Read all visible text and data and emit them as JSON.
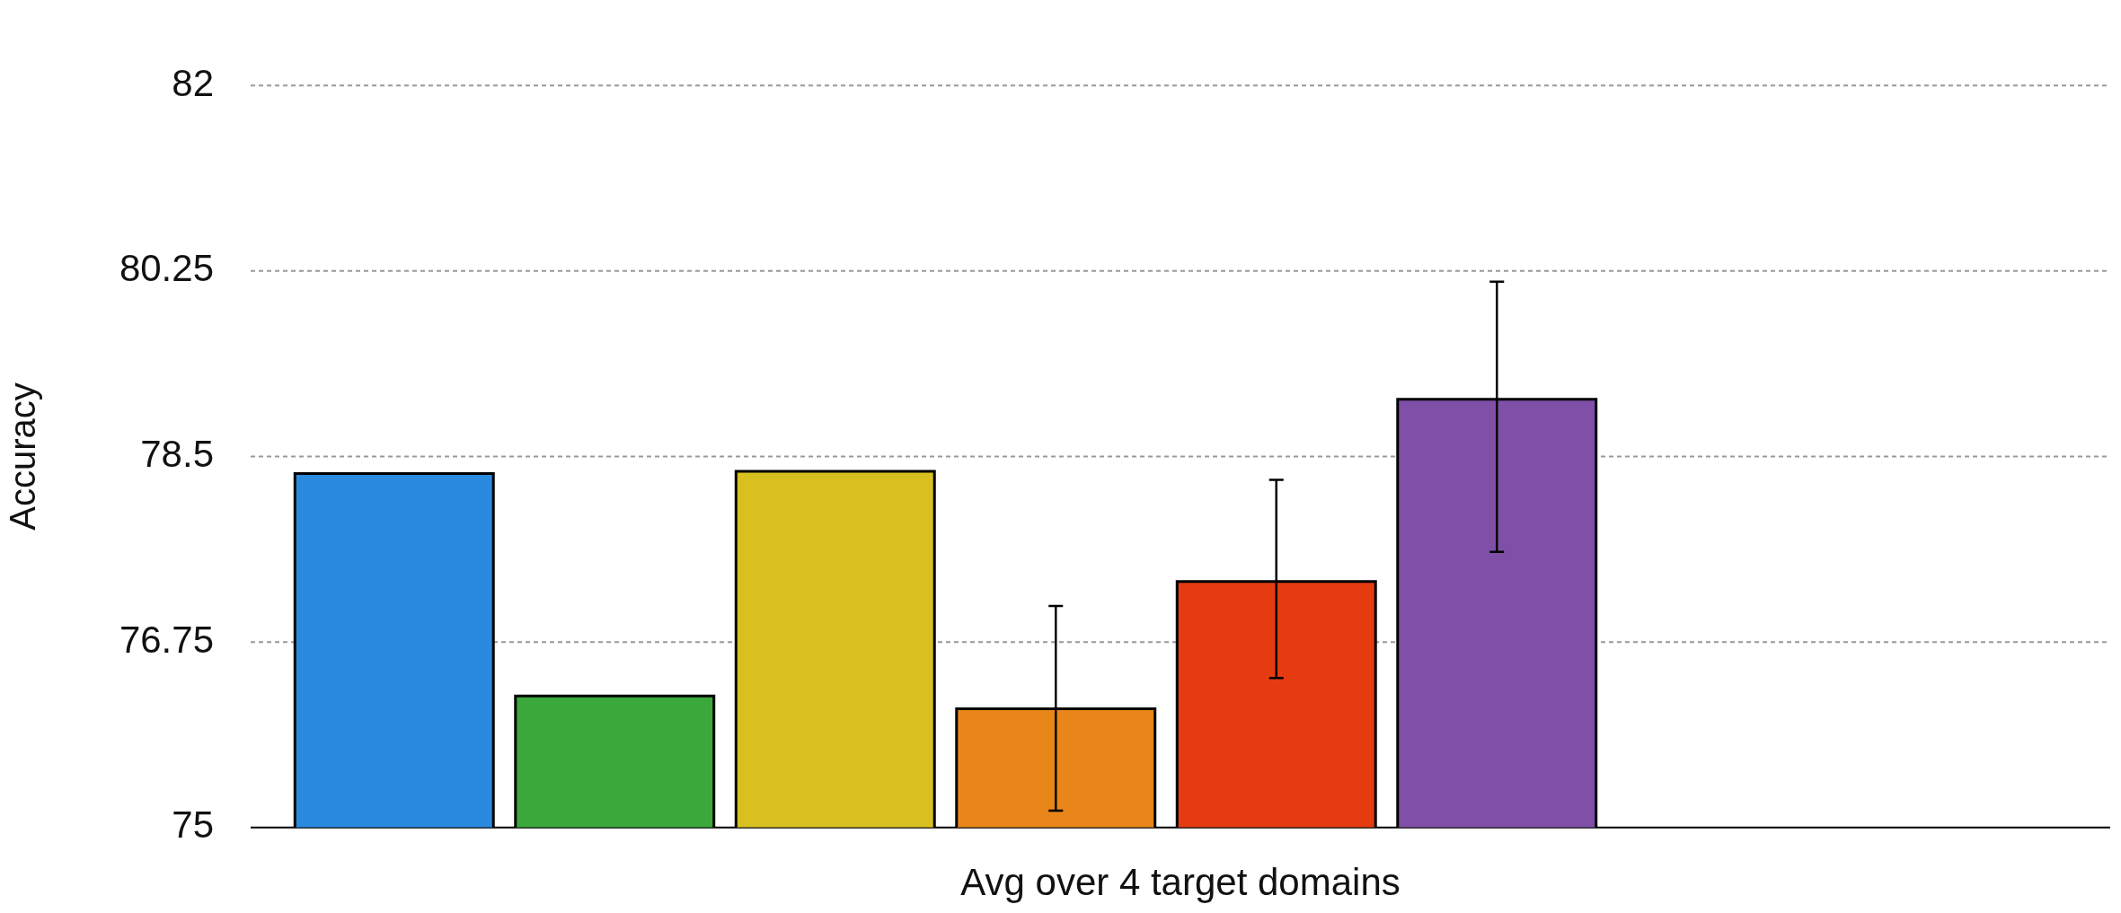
{
  "chart_data": {
    "type": "bar",
    "xlabel": "Avg over 4 target domains",
    "ylabel": "Accuracy",
    "categories": [
      null,
      null,
      null,
      null,
      null,
      null
    ],
    "values": [
      78.34,
      76.24,
      78.36,
      76.12,
      77.32,
      79.04
    ],
    "colors": [
      "#2a8ae0",
      "#3aa83a",
      "#d8c020",
      "#e8861a",
      "#e43c10",
      "#8050a8"
    ],
    "errors": [
      null,
      null,
      null,
      [
        75.16,
        77.09
      ],
      [
        76.41,
        78.28
      ],
      [
        77.6,
        80.15
      ]
    ],
    "ylim": [
      75,
      82
    ],
    "yticks": [
      75,
      76.75,
      78.5,
      80.25,
      82
    ],
    "grid": "y",
    "legend": false
  }
}
